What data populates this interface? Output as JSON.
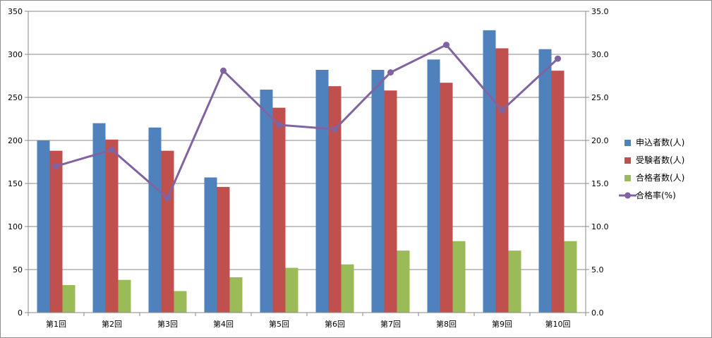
{
  "chart_data": {
    "type": "bar",
    "title": "",
    "categories": [
      "第1回",
      "第2回",
      "第3回",
      "第4回",
      "第5回",
      "第6回",
      "第7回",
      "第8回",
      "第9回",
      "第10回"
    ],
    "series": [
      {
        "name": "申込者数(人)",
        "kind": "bar",
        "axis": "left",
        "color": "#4F81BD",
        "values": [
          200,
          220,
          215,
          157,
          259,
          282,
          282,
          294,
          328,
          306
        ]
      },
      {
        "name": "受験者数(人)",
        "kind": "bar",
        "axis": "left",
        "color": "#C0504D",
        "values": [
          188,
          201,
          188,
          146,
          238,
          263,
          258,
          267,
          307,
          281
        ]
      },
      {
        "name": "合格者数(人)",
        "kind": "bar",
        "axis": "left",
        "color": "#9BBB59",
        "values": [
          32,
          38,
          25,
          41,
          52,
          56,
          72,
          83,
          72,
          83
        ]
      },
      {
        "name": "合格率(%)",
        "kind": "line",
        "axis": "right",
        "color": "#8064A2",
        "values": [
          17.0,
          18.9,
          13.3,
          28.1,
          21.8,
          21.3,
          27.9,
          31.1,
          23.5,
          29.5
        ]
      }
    ],
    "y_left": {
      "min": 0,
      "max": 350,
      "ticks": [
        "0",
        "50",
        "100",
        "150",
        "200",
        "250",
        "300",
        "350"
      ]
    },
    "y_right": {
      "min": 0,
      "max": 35,
      "ticks": [
        "0.0",
        "5.0",
        "10.0",
        "15.0",
        "20.0",
        "25.0",
        "30.0",
        "35.0"
      ]
    },
    "grid": true,
    "legend_position": "right"
  }
}
